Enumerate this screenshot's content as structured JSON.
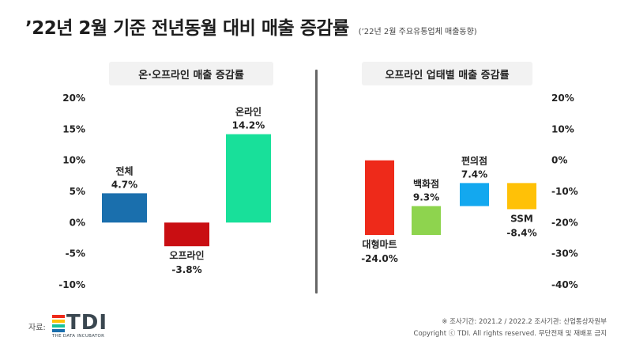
{
  "title": "’22년 2월 기준 전년동월 대비 매출 증감률",
  "subtitle": "(’22년 2월 주요유통업체 매출동향)",
  "divider_color": "#666666",
  "chart_data": [
    {
      "type": "bar",
      "title": "온·오프라인 매출 증감률",
      "categories": [
        "전체",
        "오프라인",
        "온라인"
      ],
      "values": [
        4.7,
        -3.8,
        14.2
      ],
      "value_labels": [
        "4.7%",
        "-3.8%",
        "14.2%"
      ],
      "colors": [
        "#1a6fad",
        "#c90e12",
        "#18e09a"
      ],
      "yticks": [
        "20%",
        "15%",
        "10%",
        "5%",
        "0%",
        "-5%",
        "-10%"
      ],
      "ylim": [
        -10,
        20
      ],
      "axis_side": "left",
      "grid": false,
      "waterfall": false
    },
    {
      "type": "bar",
      "title": "오프라인 업태별 매출 증감률",
      "categories": [
        "대형마트",
        "백화점",
        "편의점",
        "SSM"
      ],
      "values": [
        -24.0,
        9.3,
        7.4,
        -8.4
      ],
      "value_labels": [
        "-24.0%",
        "9.3%",
        "7.4%",
        "-8.4%"
      ],
      "colors": [
        "#ee2a1a",
        "#8ed44e",
        "#13a8ef",
        "#ffc107"
      ],
      "yticks": [
        "20%",
        "10%",
        "0%",
        "-10%",
        "-20%",
        "-30%",
        "-40%"
      ],
      "ylim": [
        -40,
        20
      ],
      "axis_side": "right",
      "grid": false,
      "waterfall": true
    }
  ],
  "source": {
    "label": "자료:",
    "logo_text": "TDI",
    "logo_sub": "THE DATA INCUBATOR",
    "logo_colors": [
      "#ee2a1a",
      "#ffc107",
      "#18c39a",
      "#1a6fad"
    ]
  },
  "footer": {
    "survey": "※ 조사기간: 2021.2 / 2022.2   조사기관: 산업통상자원부",
    "copyright": "Copyright ⓒ TDI. All rights reserved. 무단전재 및 재배포 금지"
  }
}
